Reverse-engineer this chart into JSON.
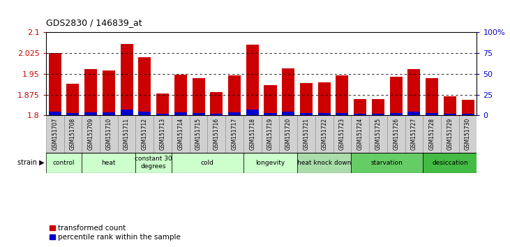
{
  "title": "GDS2830 / 146839_at",
  "samples": [
    "GSM151707",
    "GSM151708",
    "GSM151709",
    "GSM151710",
    "GSM151711",
    "GSM151712",
    "GSM151713",
    "GSM151714",
    "GSM151715",
    "GSM151716",
    "GSM151717",
    "GSM151718",
    "GSM151719",
    "GSM151720",
    "GSM151721",
    "GSM151722",
    "GSM151723",
    "GSM151724",
    "GSM151725",
    "GSM151726",
    "GSM151727",
    "GSM151728",
    "GSM151729",
    "GSM151730"
  ],
  "red_values": [
    2.025,
    1.915,
    1.968,
    1.962,
    2.057,
    2.01,
    1.878,
    1.948,
    1.935,
    1.885,
    1.945,
    2.056,
    1.908,
    1.97,
    1.918,
    1.92,
    1.945,
    1.86,
    1.858,
    1.94,
    1.968,
    1.935,
    1.87,
    1.857
  ],
  "blue_values_pct": [
    5,
    3,
    4,
    4,
    7,
    5,
    2,
    4,
    3,
    2,
    4,
    7,
    3,
    5,
    3,
    3,
    3,
    2,
    2,
    3,
    5,
    3,
    2,
    2
  ],
  "groups": [
    {
      "label": "control",
      "start": 0,
      "end": 2,
      "color": "#ccffcc"
    },
    {
      "label": "heat",
      "start": 2,
      "end": 5,
      "color": "#ccffcc"
    },
    {
      "label": "constant 30\ndegrees",
      "start": 5,
      "end": 7,
      "color": "#ccffcc"
    },
    {
      "label": "cold",
      "start": 7,
      "end": 11,
      "color": "#ccffcc"
    },
    {
      "label": "longevity",
      "start": 11,
      "end": 14,
      "color": "#ccffcc"
    },
    {
      "label": "heat knock down",
      "start": 14,
      "end": 17,
      "color": "#aaddaa"
    },
    {
      "label": "starvation",
      "start": 17,
      "end": 21,
      "color": "#66cc66"
    },
    {
      "label": "desiccation",
      "start": 21,
      "end": 24,
      "color": "#44bb44"
    }
  ],
  "ymin": 1.8,
  "ymax": 2.1,
  "yticks_left": [
    1.8,
    1.875,
    1.95,
    2.025,
    2.1
  ],
  "ytick_labels_left": [
    "1.8",
    "1.875",
    "1.95",
    "2.025",
    "2.1"
  ],
  "yticks_right": [
    0,
    25,
    50,
    75,
    100
  ],
  "ytick_labels_right": [
    "0",
    "25",
    "50",
    "75",
    "100%"
  ],
  "red_color": "#cc0000",
  "blue_color": "#0000cc",
  "bar_width": 0.7,
  "grid_lines": [
    1.875,
    1.95,
    2.025
  ],
  "strain_label": "strain ▶",
  "legend1": "transformed count",
  "legend2": "percentile rank within the sample"
}
